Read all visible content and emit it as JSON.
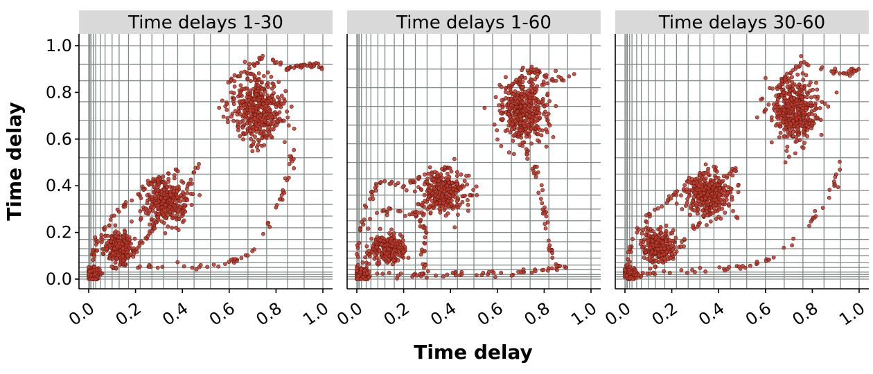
{
  "figure": {
    "xlabel": "Time delay",
    "ylabel": "Time delay"
  },
  "style": {
    "strip_fill": "#d9d9d9",
    "grid_color": "#7f8a87",
    "point_fill": "#c0392b",
    "point_stroke": "#5a1a12",
    "axis_color": "#000000"
  },
  "chart_data": [
    {
      "type": "scatter",
      "title": "Time delays 1-30",
      "xlim": [
        0,
        1
      ],
      "ylim": [
        0,
        1
      ],
      "x_ticks": [
        "0.0",
        "0.2",
        "0.4",
        "0.6",
        "0.8",
        "1.0"
      ],
      "y_ticks": [
        "0.0",
        "0.2",
        "0.4",
        "0.6",
        "0.8",
        "1.0"
      ],
      "grid_x": [
        0,
        0.005,
        0.01,
        0.02,
        0.03,
        0.05,
        0.07,
        0.1,
        0.13,
        0.17,
        0.22,
        0.27,
        0.32,
        0.38,
        0.45,
        0.52,
        0.6,
        0.68,
        0.76,
        0.85,
        0.92,
        1.0
      ],
      "grid_y": [
        0,
        0.01,
        0.02,
        0.03,
        0.05,
        0.07,
        0.1,
        0.13,
        0.17,
        0.22,
        0.27,
        0.32,
        0.38,
        0.45,
        0.52,
        0.6,
        0.68,
        0.76,
        0.85,
        0.92,
        1.0
      ],
      "clusters": [
        {
          "x": 0.13,
          "y": 0.14,
          "sx": 0.03,
          "sy": 0.03,
          "n": 260
        },
        {
          "x": 0.33,
          "y": 0.33,
          "sx": 0.045,
          "sy": 0.045,
          "n": 320
        },
        {
          "x": 0.72,
          "y": 0.73,
          "sx": 0.055,
          "sy": 0.07,
          "n": 420
        },
        {
          "x": 0.02,
          "y": 0.02,
          "sx": 0.015,
          "sy": 0.015,
          "n": 90
        }
      ],
      "paths": [
        {
          "pts": [
            [
              0.0,
              0.0
            ],
            [
              0.05,
              0.04
            ],
            [
              0.15,
              0.06
            ],
            [
              0.3,
              0.05
            ],
            [
              0.45,
              0.05
            ],
            [
              0.6,
              0.07
            ],
            [
              0.7,
              0.12
            ],
            [
              0.8,
              0.3
            ],
            [
              0.86,
              0.45
            ],
            [
              0.88,
              0.6
            ]
          ],
          "n": 70
        },
        {
          "pts": [
            [
              0.0,
              0.02
            ],
            [
              0.03,
              0.15
            ],
            [
              0.1,
              0.27
            ],
            [
              0.2,
              0.35
            ],
            [
              0.28,
              0.42
            ],
            [
              0.4,
              0.48
            ]
          ],
          "n": 60
        },
        {
          "pts": [
            [
              0.1,
              0.05
            ],
            [
              0.2,
              0.12
            ],
            [
              0.3,
              0.25
            ],
            [
              0.42,
              0.4
            ],
            [
              0.48,
              0.5
            ]
          ],
          "n": 50
        },
        {
          "pts": [
            [
              0.6,
              0.85
            ],
            [
              0.75,
              0.95
            ],
            [
              0.85,
              0.9
            ],
            [
              0.95,
              0.92
            ],
            [
              1.0,
              0.9
            ]
          ],
          "n": 60
        }
      ]
    },
    {
      "type": "scatter",
      "title": "Time delays 1-60",
      "xlim": [
        0,
        1
      ],
      "ylim": [
        0,
        1
      ],
      "x_ticks": [
        "0.0",
        "0.2",
        "0.4",
        "0.6",
        "0.8",
        "1.0"
      ],
      "y_ticks": [],
      "grid_x": [
        0,
        0.005,
        0.01,
        0.02,
        0.04,
        0.06,
        0.09,
        0.12,
        0.16,
        0.2,
        0.25,
        0.3,
        0.36,
        0.43,
        0.5,
        0.58,
        0.66,
        0.74,
        0.82,
        0.9,
        1.0
      ],
      "grid_y": [
        0,
        0.01,
        0.02,
        0.04,
        0.06,
        0.09,
        0.12,
        0.16,
        0.2,
        0.25,
        0.3,
        0.36,
        0.43,
        0.5,
        0.58,
        0.66,
        0.74,
        0.82,
        0.9,
        1.0
      ],
      "clusters": [
        {
          "x": 0.13,
          "y": 0.13,
          "sx": 0.035,
          "sy": 0.03,
          "n": 240
        },
        {
          "x": 0.37,
          "y": 0.37,
          "sx": 0.05,
          "sy": 0.045,
          "n": 300
        },
        {
          "x": 0.71,
          "y": 0.72,
          "sx": 0.05,
          "sy": 0.065,
          "n": 420
        },
        {
          "x": 0.02,
          "y": 0.02,
          "sx": 0.015,
          "sy": 0.015,
          "n": 90
        }
      ],
      "paths": [
        {
          "pts": [
            [
              0.0,
              0.0
            ],
            [
              0.1,
              0.02
            ],
            [
              0.3,
              0.02
            ],
            [
              0.5,
              0.02
            ],
            [
              0.7,
              0.03
            ],
            [
              0.9,
              0.05
            ]
          ],
          "n": 70
        },
        {
          "pts": [
            [
              0.72,
              0.56
            ],
            [
              0.77,
              0.45
            ],
            [
              0.8,
              0.3
            ],
            [
              0.82,
              0.15
            ],
            [
              0.85,
              0.06
            ]
          ],
          "n": 40
        },
        {
          "pts": [
            [
              0.0,
              0.02
            ],
            [
              0.01,
              0.2
            ],
            [
              0.05,
              0.35
            ],
            [
              0.1,
              0.42
            ],
            [
              0.2,
              0.4
            ],
            [
              0.3,
              0.45
            ],
            [
              0.4,
              0.48
            ]
          ],
          "n": 60
        },
        {
          "pts": [
            [
              0.05,
              0.25
            ],
            [
              0.15,
              0.3
            ],
            [
              0.25,
              0.28
            ],
            [
              0.3,
              0.2
            ],
            [
              0.28,
              0.1
            ],
            [
              0.3,
              0.02
            ]
          ],
          "n": 45
        },
        {
          "pts": [
            [
              0.65,
              0.82
            ],
            [
              0.75,
              0.9
            ],
            [
              0.85,
              0.85
            ],
            [
              0.92,
              0.88
            ]
          ],
          "n": 40
        }
      ]
    },
    {
      "type": "scatter",
      "title": "Time delays 30-60",
      "xlim": [
        0,
        1
      ],
      "ylim": [
        0,
        1
      ],
      "x_ticks": [
        "0.0",
        "0.2",
        "0.4",
        "0.6",
        "0.8",
        "1.0"
      ],
      "y_ticks": [],
      "grid_x": [
        0,
        0.005,
        0.01,
        0.02,
        0.03,
        0.05,
        0.07,
        0.1,
        0.13,
        0.17,
        0.22,
        0.27,
        0.32,
        0.38,
        0.45,
        0.52,
        0.6,
        0.68,
        0.76,
        0.85,
        0.92,
        1.0
      ],
      "grid_y": [
        0,
        0.01,
        0.02,
        0.03,
        0.05,
        0.07,
        0.1,
        0.13,
        0.17,
        0.22,
        0.27,
        0.32,
        0.38,
        0.45,
        0.52,
        0.6,
        0.68,
        0.76,
        0.85,
        0.92,
        1.0
      ],
      "clusters": [
        {
          "x": 0.14,
          "y": 0.14,
          "sx": 0.03,
          "sy": 0.03,
          "n": 250
        },
        {
          "x": 0.36,
          "y": 0.36,
          "sx": 0.05,
          "sy": 0.045,
          "n": 310
        },
        {
          "x": 0.72,
          "y": 0.72,
          "sx": 0.05,
          "sy": 0.065,
          "n": 420
        },
        {
          "x": 0.02,
          "y": 0.02,
          "sx": 0.015,
          "sy": 0.015,
          "n": 90
        }
      ],
      "paths": [
        {
          "pts": [
            [
              0.0,
              0.0
            ],
            [
              0.1,
              0.03
            ],
            [
              0.3,
              0.04
            ],
            [
              0.5,
              0.05
            ],
            [
              0.65,
              0.1
            ],
            [
              0.8,
              0.25
            ],
            [
              0.9,
              0.4
            ],
            [
              0.91,
              0.52
            ]
          ],
          "n": 60
        },
        {
          "pts": [
            [
              0.0,
              0.02
            ],
            [
              0.03,
              0.15
            ],
            [
              0.1,
              0.27
            ],
            [
              0.2,
              0.35
            ],
            [
              0.28,
              0.42
            ],
            [
              0.4,
              0.48
            ]
          ],
          "n": 55
        },
        {
          "pts": [
            [
              0.1,
              0.04
            ],
            [
              0.2,
              0.1
            ],
            [
              0.3,
              0.22
            ],
            [
              0.4,
              0.4
            ],
            [
              0.48,
              0.48
            ]
          ],
          "n": 45
        },
        {
          "pts": [
            [
              0.65,
              0.82
            ],
            [
              0.75,
              0.93
            ],
            [
              0.85,
              0.9
            ],
            [
              0.95,
              0.88
            ],
            [
              1.0,
              0.9
            ]
          ],
          "n": 50
        }
      ]
    }
  ]
}
